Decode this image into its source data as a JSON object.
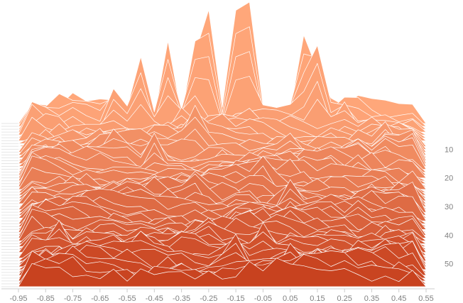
{
  "chart_data": {
    "type": "ridgeline",
    "title": "",
    "xlabel": "",
    "ylabel": "",
    "x_ticks": [
      "-0.95",
      "-0.85",
      "-0.75",
      "-0.65",
      "-0.55",
      "-0.45",
      "-0.35",
      "-0.25",
      "-0.15",
      "-0.05",
      "0.05",
      "0.15",
      "0.25",
      "0.35",
      "0.45",
      "0.55"
    ],
    "y_ticks": [
      "10",
      "20",
      "30",
      "40",
      "50"
    ],
    "xlim": [
      -0.95,
      0.55
    ],
    "ylim": [
      0,
      58
    ],
    "series_count": 58,
    "x_sample_step": 0.05,
    "color_front": "#c8421f",
    "color_back": "#ffa77a",
    "line_color": "#ffffff",
    "grid": false,
    "legend": "none",
    "ridges": [
      {
        "row": 1,
        "x": -0.16,
        "height": 205
      },
      {
        "row": 1,
        "x": -0.09,
        "height": 220
      },
      {
        "row": 1,
        "x": -0.25,
        "height": 160
      },
      {
        "row": 1,
        "x": 0.09,
        "height": 160
      },
      {
        "row": 2,
        "x": -0.4,
        "height": 120
      },
      {
        "row": 2,
        "x": -0.3,
        "height": 120
      },
      {
        "row": 3,
        "x": 0.15,
        "height": 118
      },
      {
        "row": 3,
        "x": -0.5,
        "height": 102
      },
      {
        "row": 4,
        "x": -0.58,
        "height": 110
      },
      {
        "row": 5,
        "x": 0.26,
        "height": 60
      },
      {
        "row": 6,
        "x": -0.36,
        "height": 55
      },
      {
        "row": 7,
        "x": 0.33,
        "height": 60
      },
      {
        "row": 9,
        "x": -0.12,
        "height": 70
      },
      {
        "row": 10,
        "x": 0.41,
        "height": 50
      },
      {
        "row": 11,
        "x": -0.67,
        "height": 60
      },
      {
        "row": 12,
        "x": -0.3,
        "height": 70
      },
      {
        "row": 14,
        "x": 0.03,
        "height": 70
      },
      {
        "row": 16,
        "x": -0.58,
        "height": 95
      },
      {
        "row": 18,
        "x": -0.45,
        "height": 55
      },
      {
        "row": 20,
        "x": -0.12,
        "height": 65
      },
      {
        "row": 22,
        "x": -0.78,
        "height": 60
      },
      {
        "row": 24,
        "x": 0.37,
        "height": 50
      },
      {
        "row": 26,
        "x": -0.05,
        "height": 55
      },
      {
        "row": 28,
        "x": -0.52,
        "height": 45
      },
      {
        "row": 30,
        "x": 0.48,
        "height": 45
      },
      {
        "row": 31,
        "x": -0.3,
        "height": 50
      },
      {
        "row": 33,
        "x": 0.05,
        "height": 50
      },
      {
        "row": 35,
        "x": -0.65,
        "height": 45
      },
      {
        "row": 36,
        "x": -0.12,
        "height": 55
      },
      {
        "row": 38,
        "x": 0.33,
        "height": 45
      },
      {
        "row": 40,
        "x": -0.42,
        "height": 45
      },
      {
        "row": 42,
        "x": 0.06,
        "height": 55
      },
      {
        "row": 44,
        "x": -0.24,
        "height": 45
      },
      {
        "row": 46,
        "x": -0.8,
        "height": 45
      },
      {
        "row": 48,
        "x": -0.05,
        "height": 50
      },
      {
        "row": 50,
        "x": 0.41,
        "height": 45
      },
      {
        "row": 51,
        "x": -0.5,
        "height": 50
      },
      {
        "row": 52,
        "x": -0.15,
        "height": 50
      },
      {
        "row": 54,
        "x": 0.05,
        "height": 45
      },
      {
        "row": 55,
        "x": -0.58,
        "height": 50
      },
      {
        "row": 56,
        "x": 0.25,
        "height": 40
      }
    ]
  }
}
